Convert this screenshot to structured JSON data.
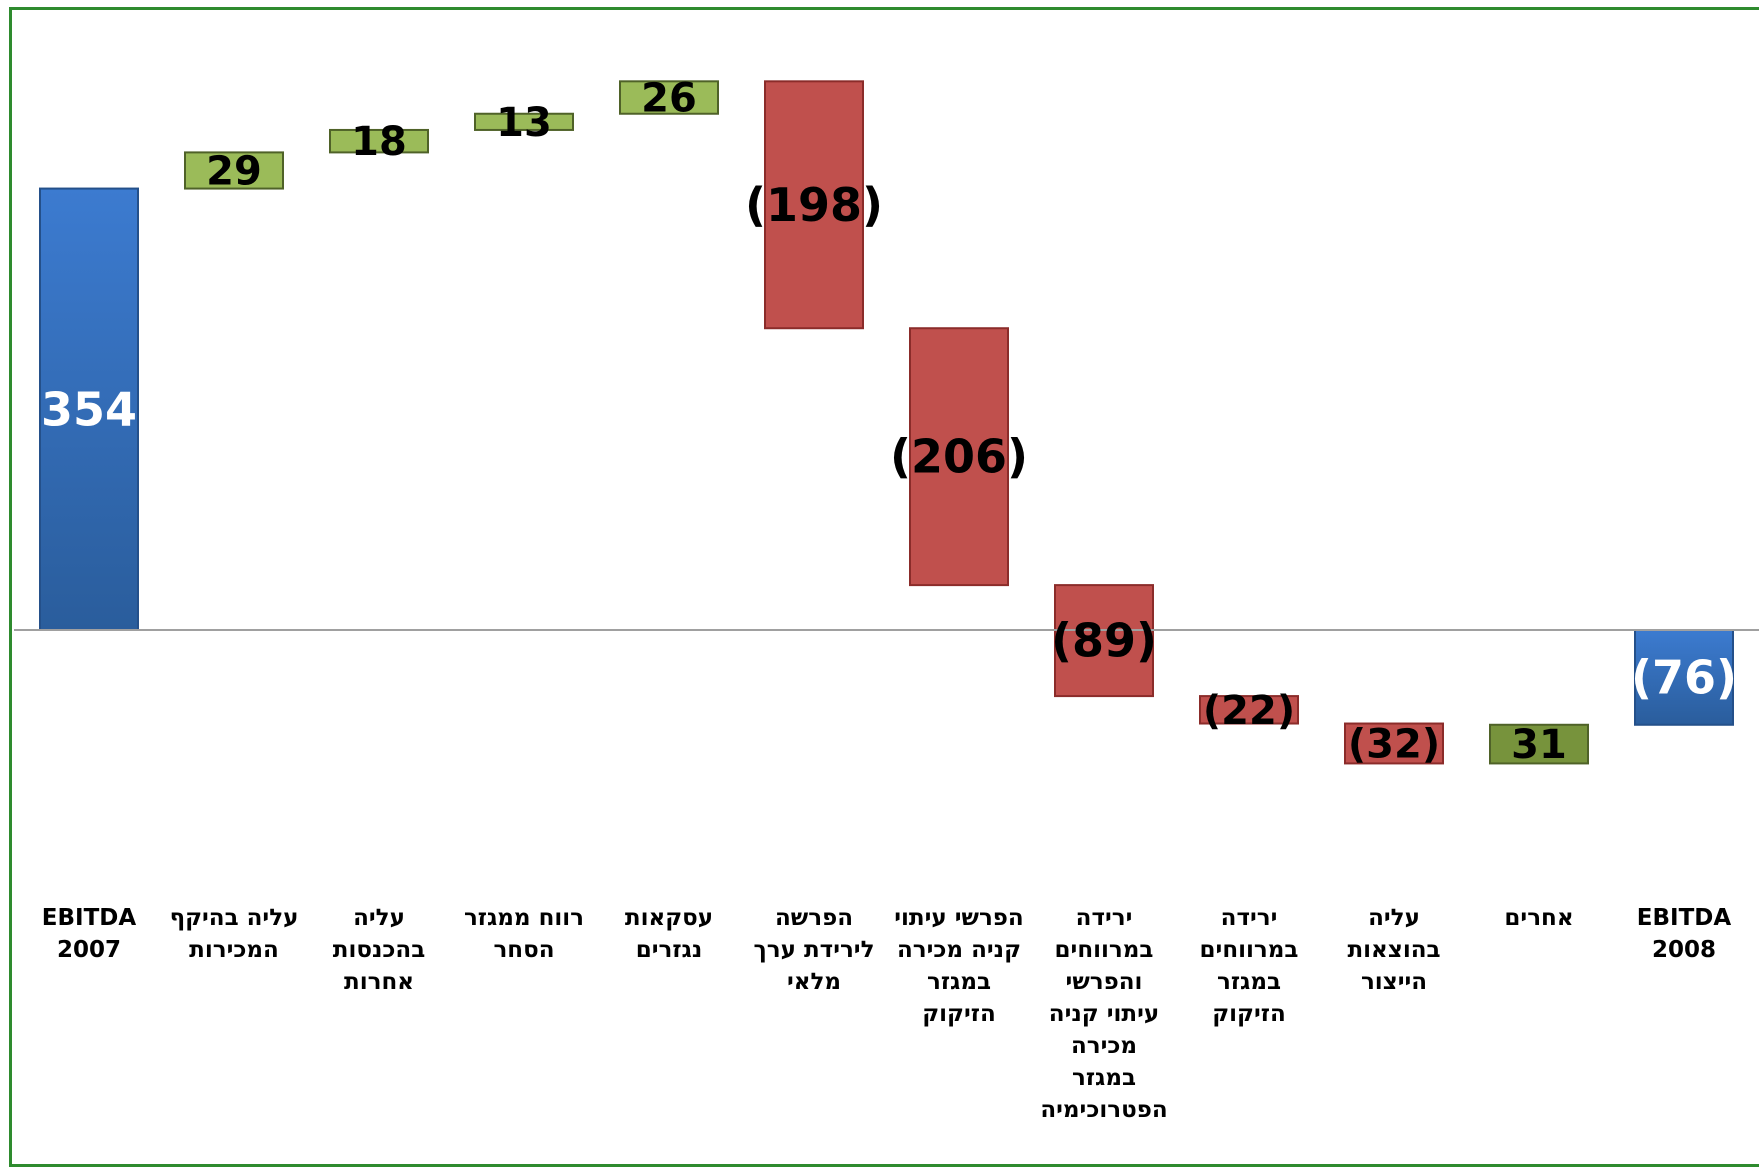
{
  "chart_data": {
    "type": "waterfall",
    "title": "",
    "xlabel": "",
    "ylabel": "",
    "categories": [
      [
        "EBITDA",
        "2007"
      ],
      [
        "עליה בהיקף",
        "המכירות"
      ],
      [
        "עליה",
        "בהכנסות",
        "אחרות"
      ],
      [
        "רווח ממגזר",
        "הסחר"
      ],
      [
        "עסקאות",
        "נגזרים"
      ],
      [
        "הפרשה",
        "לירידת ערך",
        "מלאי"
      ],
      [
        "הפרשי עיתוי",
        "קניה מכירה",
        "במגזר",
        "הזיקוק"
      ],
      [
        "ירידה",
        "במרווחים",
        "והפרשי",
        "עיתוי קניה",
        "מכירה",
        "במגזר",
        "הפטרוכימיה"
      ],
      [
        "ירידה",
        "במרווחים",
        "במגזר",
        "הזיקוק"
      ],
      [
        "עליה",
        "בהוצאות",
        "הייצור"
      ],
      [
        "אחרים"
      ],
      [
        "EBITDA",
        "2008"
      ]
    ],
    "values": [
      354,
      29,
      18,
      13,
      26,
      -198,
      -206,
      -89,
      -22,
      -32,
      31,
      -76
    ],
    "labels": [
      "354",
      "29",
      "18",
      "13",
      "26",
      "(198)",
      "(206)",
      "(89)",
      "(22)",
      "(32)",
      "31",
      "(76)"
    ],
    "kinds": [
      "total",
      "delta",
      "delta",
      "delta",
      "delta",
      "delta",
      "delta",
      "delta",
      "delta",
      "delta",
      "delta",
      "total"
    ],
    "ylim": [
      -165,
      500
    ],
    "grid": false,
    "legend": "none",
    "colors": {
      "increase": "#9bbb59",
      "increase_dark": "#77933c",
      "decrease": "#c0504d",
      "total_top": "#3c7bd0",
      "total_bottom": "#2a5d9c",
      "zero_line": "#a0a0a0",
      "frame": "#2e8b2e",
      "bar_outline": "#8b2c2a"
    }
  }
}
